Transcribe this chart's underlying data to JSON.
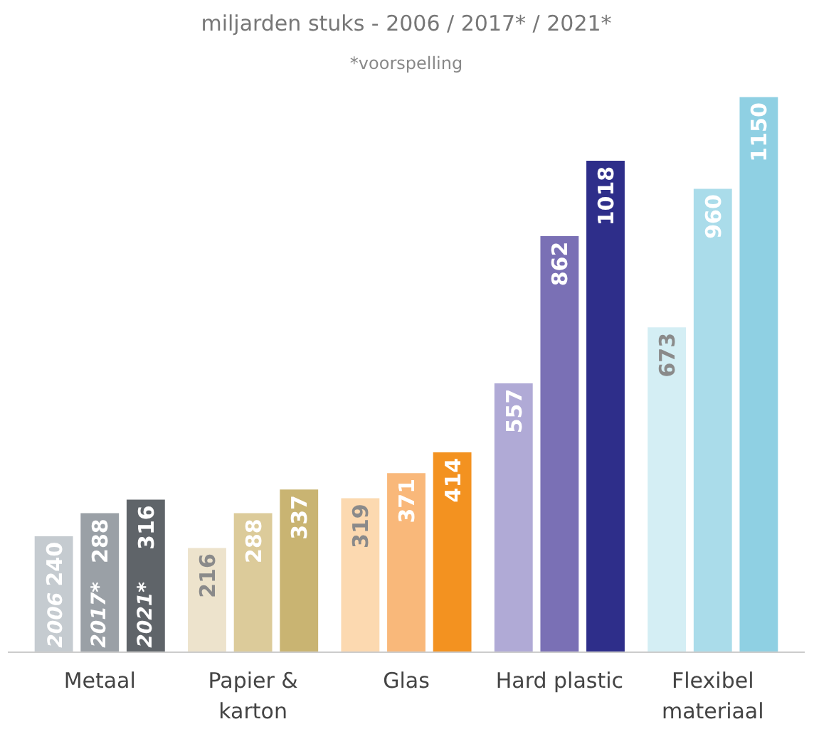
{
  "chart_data": {
    "type": "bar",
    "title": "miljarden stuks - 2006 / 2017* / 2021*",
    "subtitle": "*voorspelling",
    "categories": [
      "Metaal",
      "Papier &\nkarton",
      "Glas",
      "Hard plastic",
      "Flexibel\nmateriaal"
    ],
    "series": [
      {
        "name": "2006",
        "colors": [
          "#c5cbd0",
          "#ede3cc",
          "#fcd9b0",
          "#b0aad6",
          "#d4eef4"
        ],
        "values": [
          240,
          216,
          319,
          557,
          673
        ]
      },
      {
        "name": "2017*",
        "colors": [
          "#9aa0a6",
          "#dccb9a",
          "#f9b87a",
          "#7a70b5",
          "#aadcea"
        ],
        "values": [
          288,
          288,
          371,
          862,
          960
        ]
      },
      {
        "name": "2021*",
        "colors": [
          "#5f6469",
          "#c9b472",
          "#f39220",
          "#2e2e8a",
          "#8fd0e3"
        ],
        "values": [
          316,
          337,
          414,
          1018,
          1150
        ]
      }
    ],
    "data_labels": true,
    "grid": false
  }
}
